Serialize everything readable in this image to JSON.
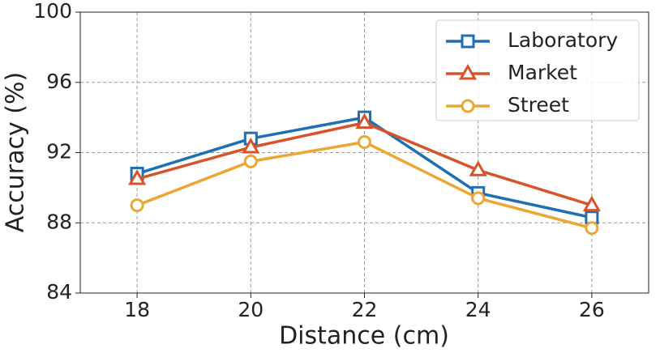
{
  "chart_data": {
    "type": "line",
    "xlabel": "Distance (cm)",
    "ylabel": "Accuracy (%)",
    "x": [
      18,
      20,
      22,
      24,
      26
    ],
    "series": [
      {
        "name": "Laboratory",
        "color": "#1f6fb4",
        "marker": "square",
        "values": [
          90.8,
          92.8,
          94.0,
          89.7,
          88.3
        ]
      },
      {
        "name": "Market",
        "color": "#d6542b",
        "marker": "triangle",
        "values": [
          90.5,
          92.3,
          93.7,
          91.0,
          89.0
        ]
      },
      {
        "name": "Street",
        "color": "#eca631",
        "marker": "circle",
        "values": [
          89.0,
          91.5,
          92.6,
          89.4,
          87.7
        ]
      }
    ],
    "xlim": [
      17,
      27
    ],
    "xticks": [
      18,
      20,
      22,
      24,
      26
    ],
    "ylim": [
      84,
      100
    ],
    "yticks": [
      84,
      88,
      92,
      96,
      100
    ],
    "grid": true,
    "legend": "upper right"
  }
}
